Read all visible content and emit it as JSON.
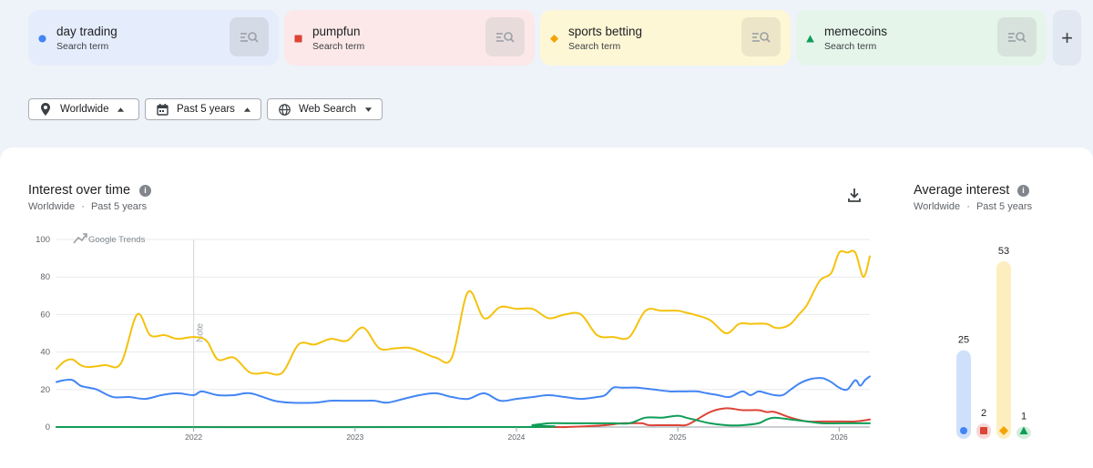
{
  "terms": [
    {
      "name": "day trading",
      "sub": "Search term",
      "color": "#4285f4",
      "bg": "#e5edfd",
      "btn": "#d5dbe6",
      "shape": "circle"
    },
    {
      "name": "pumpfun",
      "sub": "Search term",
      "color": "#db4437",
      "bg": "#fce8e8",
      "btn": "#e8dbdc",
      "shape": "square"
    },
    {
      "name": "sports betting",
      "sub": "Search term",
      "color": "#f4a400",
      "bg": "#fef7d6",
      "btn": "#ece5c7",
      "shape": "diamond"
    },
    {
      "name": "memecoins",
      "sub": "Search term",
      "color": "#0f9d58",
      "bg": "#e5f5ea",
      "btn": "#d6e2db",
      "shape": "triangle"
    }
  ],
  "add_label": "+",
  "filters": {
    "region": "Worldwide",
    "period": "Past 5 years",
    "property": "Web Search"
  },
  "interest_panel": {
    "title": "Interest over time",
    "sub_region": "Worldwide",
    "sub_sep": "·",
    "sub_period": "Past 5 years",
    "watermark": "Google Trends",
    "note": "Note"
  },
  "average_panel": {
    "title": "Average interest",
    "sub_region": "Worldwide",
    "sub_sep": "·",
    "sub_period": "Past 5 years"
  },
  "chart_data": [
    {
      "type": "line",
      "title": "Interest over time",
      "xlabel": "",
      "ylabel": "",
      "ylim": [
        0,
        100
      ],
      "xlim": [
        2021.15,
        2026.19
      ],
      "yticks": [
        0,
        20,
        40,
        60,
        80,
        100
      ],
      "xticks": [
        "2022",
        "2023",
        "2024",
        "2025",
        "2026"
      ],
      "grid": true,
      "annotations": [
        {
          "text": "Note",
          "x": 2022.0
        }
      ],
      "series": [
        {
          "name": "day trading",
          "color": "#4285f4",
          "x": [
            2021.15,
            2021.2,
            2021.25,
            2021.3,
            2021.35,
            2021.4,
            2021.5,
            2021.6,
            2021.7,
            2021.8,
            2021.9,
            2022.0,
            2022.05,
            2022.15,
            2022.25,
            2022.35,
            2022.5,
            2022.6,
            2022.75,
            2022.85,
            2022.95,
            2023.05,
            2023.12,
            2023.2,
            2023.3,
            2023.4,
            2023.5,
            2023.6,
            2023.7,
            2023.8,
            2023.9,
            2024.0,
            2024.1,
            2024.2,
            2024.3,
            2024.4,
            2024.5,
            2024.55,
            2024.6,
            2024.65,
            2024.7,
            2024.75,
            2024.85,
            2024.95,
            2025.0,
            2025.05,
            2025.12,
            2025.18,
            2025.25,
            2025.32,
            2025.4,
            2025.45,
            2025.5,
            2025.55,
            2025.6,
            2025.65,
            2025.7,
            2025.75,
            2025.8,
            2025.85,
            2025.9,
            2025.95,
            2026.0,
            2026.05,
            2026.1,
            2026.13,
            2026.16,
            2026.19
          ],
          "y": [
            24,
            25,
            25,
            22,
            21,
            20,
            16,
            16,
            15,
            17,
            18,
            17,
            19,
            17,
            17,
            18,
            14,
            13,
            13,
            14,
            14,
            14,
            14,
            13,
            15,
            17,
            18,
            16,
            15,
            18,
            14,
            15,
            16,
            17,
            16,
            15,
            16,
            17,
            21,
            21,
            21,
            21,
            20,
            19,
            19,
            19,
            19,
            18,
            17,
            16,
            19,
            17,
            19,
            18,
            17,
            17,
            20,
            23,
            25,
            26,
            26,
            24,
            21,
            20,
            25,
            22,
            25,
            27
          ]
        },
        {
          "name": "pumpfun",
          "color": "#db4437",
          "x": [
            2021.15,
            2024.0,
            2024.3,
            2024.55,
            2024.65,
            2024.72,
            2024.78,
            2024.82,
            2024.9,
            2025.0,
            2025.05,
            2025.1,
            2025.2,
            2025.3,
            2025.4,
            2025.5,
            2025.55,
            2025.6,
            2025.7,
            2025.8,
            2025.9,
            2026.0,
            2026.1,
            2026.19
          ],
          "y": [
            0,
            0,
            0,
            1,
            2,
            2,
            2,
            1,
            1,
            1,
            1,
            3,
            8,
            10,
            9,
            9,
            8,
            8,
            5,
            3,
            3,
            3,
            3,
            4
          ]
        },
        {
          "name": "sports betting",
          "color": "#f4c20d",
          "x": [
            2021.15,
            2021.2,
            2021.25,
            2021.3,
            2021.35,
            2021.45,
            2021.55,
            2021.65,
            2021.73,
            2021.82,
            2021.9,
            2022.0,
            2022.08,
            2022.15,
            2022.25,
            2022.35,
            2022.45,
            2022.55,
            2022.65,
            2022.75,
            2022.85,
            2022.95,
            2023.05,
            2023.15,
            2023.25,
            2023.35,
            2023.5,
            2023.6,
            2023.7,
            2023.8,
            2023.9,
            2024.0,
            2024.1,
            2024.2,
            2024.3,
            2024.4,
            2024.5,
            2024.6,
            2024.7,
            2024.8,
            2024.9,
            2025.0,
            2025.05,
            2025.1,
            2025.2,
            2025.3,
            2025.38,
            2025.45,
            2025.55,
            2025.6,
            2025.65,
            2025.7,
            2025.75,
            2025.8,
            2025.88,
            2025.95,
            2026.0,
            2026.05,
            2026.1,
            2026.15,
            2026.19
          ],
          "y": [
            31,
            35,
            36,
            33,
            32,
            33,
            34,
            60,
            49,
            49,
            47,
            48,
            46,
            36,
            37,
            29,
            29,
            29,
            44,
            44,
            47,
            46,
            53,
            42,
            42,
            42,
            37,
            37,
            72,
            58,
            64,
            63,
            63,
            58,
            60,
            60,
            49,
            48,
            48,
            62,
            62,
            62,
            61,
            60,
            57,
            50,
            55,
            55,
            55,
            53,
            53,
            55,
            60,
            65,
            78,
            82,
            93,
            93,
            93,
            80,
            91
          ]
        },
        {
          "name": "memecoins",
          "color": "#0f9d58",
          "x": [
            2021.15,
            2024.0,
            2024.1,
            2024.2,
            2024.3,
            2024.4,
            2024.5,
            2024.6,
            2024.7,
            2024.8,
            2024.9,
            2025.0,
            2025.05,
            2025.1,
            2025.2,
            2025.3,
            2025.4,
            2025.5,
            2025.55,
            2025.6,
            2025.7,
            2025.8,
            2025.9,
            2026.0,
            2026.1,
            2026.19
          ],
          "y": [
            0,
            0,
            1,
            2,
            2,
            2,
            2,
            2,
            2,
            5,
            5,
            6,
            5,
            4,
            2,
            1,
            1,
            2,
            4,
            5,
            4,
            3,
            2,
            2,
            2,
            2
          ]
        }
      ]
    },
    {
      "type": "bar",
      "title": "Average interest",
      "categories": [
        "day trading",
        "pumpfun",
        "sports betting",
        "memecoins"
      ],
      "values": [
        25,
        2,
        53,
        1
      ],
      "ylim": [
        0,
        53
      ]
    }
  ]
}
